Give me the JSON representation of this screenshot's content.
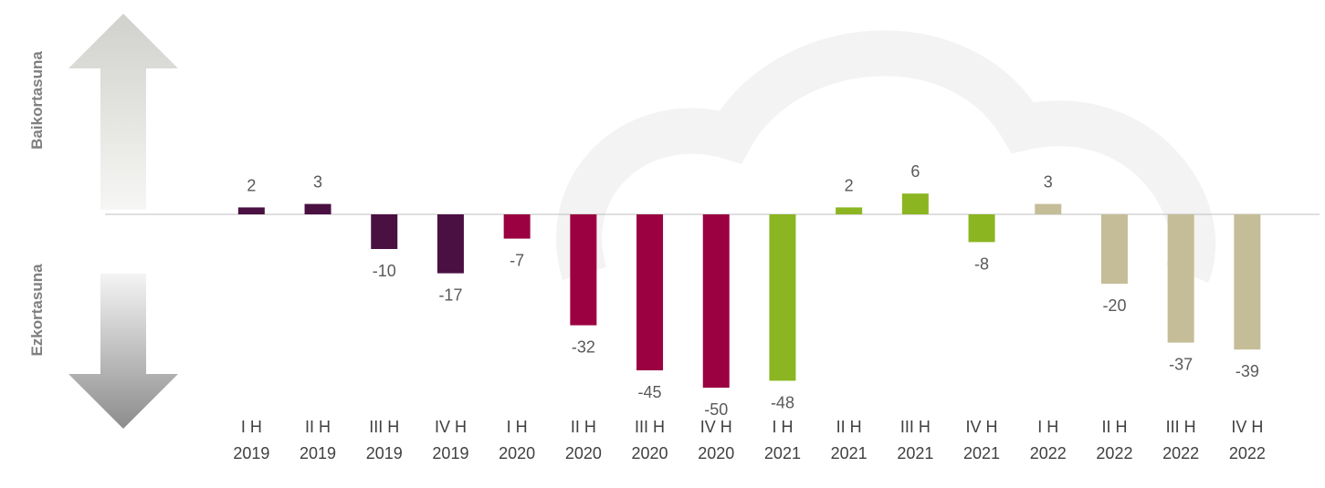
{
  "chart_data": {
    "type": "bar",
    "side_labels": [
      "Baikortasuna",
      "Ezkortasuna"
    ],
    "categories": [
      [
        "I H",
        "2019"
      ],
      [
        "II H",
        "2019"
      ],
      [
        "III H",
        "2019"
      ],
      [
        "IV H",
        "2019"
      ],
      [
        "I H",
        "2020"
      ],
      [
        "II H",
        "2020"
      ],
      [
        "III H",
        "2020"
      ],
      [
        "IV H",
        "2020"
      ],
      [
        "I H",
        "2021"
      ],
      [
        "II H",
        "2021"
      ],
      [
        "III H",
        "2021"
      ],
      [
        "IV H",
        "2021"
      ],
      [
        "I H",
        "2022"
      ],
      [
        "II H",
        "2022"
      ],
      [
        "III H",
        "2022"
      ],
      [
        "IV H",
        "2022"
      ]
    ],
    "values": [
      2,
      3,
      -10,
      -17,
      -7,
      -32,
      -45,
      -50,
      -48,
      2,
      6,
      -8,
      3,
      -20,
      -37,
      -39
    ],
    "colors": [
      "#4b1042",
      "#4b1042",
      "#4b1042",
      "#4b1042",
      "#9b0041",
      "#9b0041",
      "#9b0041",
      "#9b0041",
      "#8bb521",
      "#8bb521",
      "#8bb521",
      "#8bb521",
      "#c4bd97",
      "#c4bd97",
      "#c4bd97",
      "#c4bd97"
    ],
    "ylim": [
      -55,
      55
    ]
  }
}
